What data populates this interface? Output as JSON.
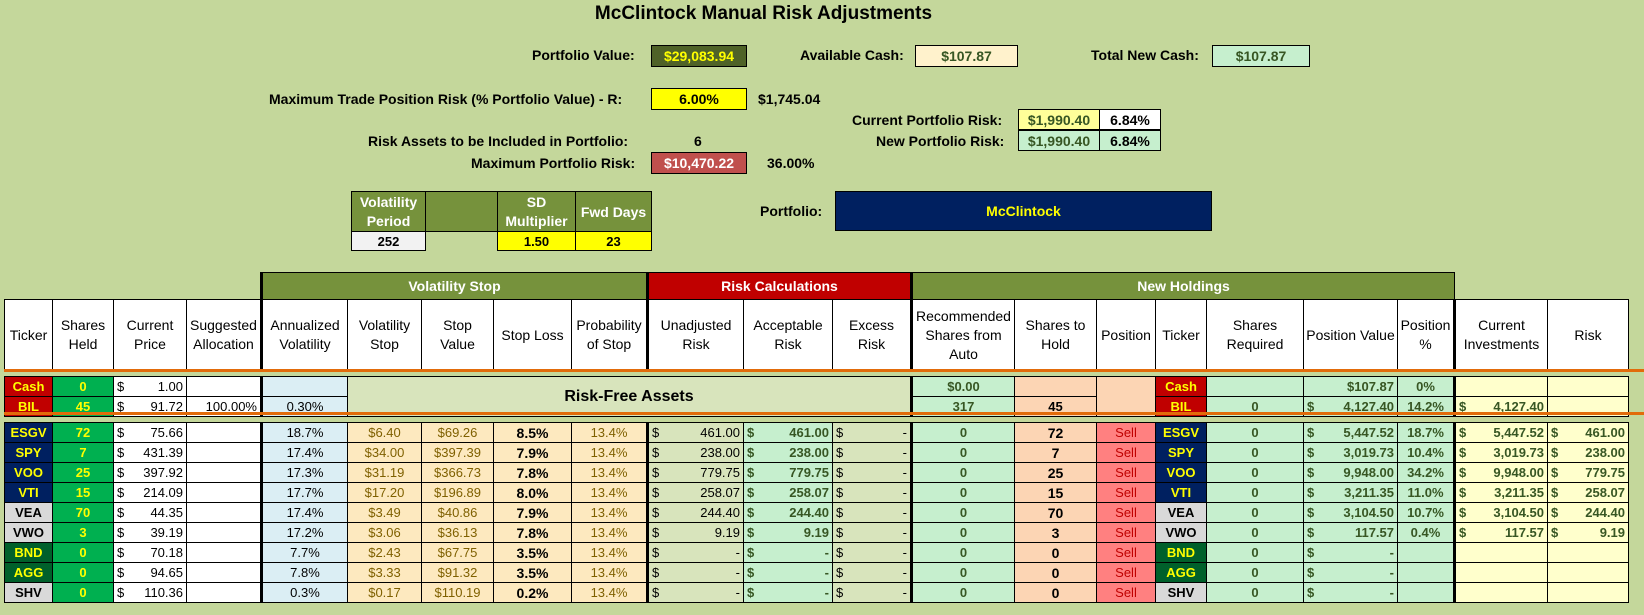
{
  "title": "McClintock Manual Risk Adjustments",
  "summary": {
    "portfolio_value_label": "Portfolio Value:",
    "portfolio_value": "$29,083.94",
    "available_cash_label": "Available Cash:",
    "available_cash": "$107.87",
    "total_new_cash_label": "Total New Cash:",
    "total_new_cash": "$107.87",
    "max_trade_risk_label": "Maximum Trade Position Risk (% Portfolio Value) - R:",
    "max_trade_risk_pct": "6.00%",
    "max_trade_risk_amt": "$1,745.04",
    "current_risk_label": "Current Portfolio Risk:",
    "current_risk_amt": "$1,990.40",
    "current_risk_pct": "6.84%",
    "new_risk_label": "New Portfolio Risk:",
    "new_risk_amt": "$1,990.40",
    "new_risk_pct": "6.84%",
    "risk_assets_label": "Risk Assets to be Included in Portfolio:",
    "risk_assets": "6",
    "max_portfolio_risk_label": "Maximum Portfolio Risk:",
    "max_portfolio_risk": "$10,470.22",
    "max_portfolio_risk_pct": "36.00%",
    "portfolio_label": "Portfolio:",
    "portfolio_name": "McClintock"
  },
  "volatility_params": {
    "h1": "Volatility Period",
    "h2": "",
    "h3": "SD Multiplier",
    "h4": "Fwd Days",
    "v1": "252",
    "v2": "",
    "v3": "1.50",
    "v4": "23"
  },
  "groups": {
    "vol_stop": "Volatility Stop",
    "risk_calc": "Risk Calculations",
    "new_holdings": "New Holdings"
  },
  "headers": [
    "Ticker",
    "Shares Held",
    "Current Price",
    "Suggested Allocation",
    "Annualized Volatility",
    "Volatility Stop",
    "Stop Value",
    "Stop Loss",
    "Probability of Stop",
    "Unadjusted Risk",
    "Acceptable Risk",
    "Excess Risk",
    "Recommended Shares from Auto",
    "Shares to Hold",
    "Position",
    "Ticker",
    "Shares Required",
    "Position Value",
    "Position %",
    "Current Investments",
    "Risk"
  ],
  "risk_free_label": "Risk-Free Assets",
  "cash_row": {
    "ticker": "Cash",
    "shares": "0",
    "price": "1.00",
    "rec": "$0.00",
    "ticker2": "Cash",
    "pos_value": "$107.87",
    "pos_pct": "0%"
  },
  "bil_row": {
    "ticker": "BIL",
    "shares": "45",
    "price": "91.72",
    "alloc": "100.00%",
    "vol": "0.30%",
    "rec": "317",
    "hold": "45",
    "ticker2": "BIL",
    "req": "0",
    "pos_value": "4,127.40",
    "pos_pct": "14.2%",
    "cur_inv": "4,127.40"
  },
  "rows": [
    {
      "ticker": "ESGV",
      "cls": "tk-navy",
      "shares": "72",
      "price": "75.66",
      "vol": "18.7%",
      "vstop": "$6.40",
      "stopval": "$69.26",
      "stoploss": "8.5%",
      "prob": "13.4%",
      "unadj": "461.00",
      "accept": "461.00",
      "excess": "-",
      "rec": "0",
      "hold": "72",
      "position": "Sell",
      "req": "0",
      "pval": "5,447.52",
      "ppct": "18.7%",
      "cur": "5,447.52",
      "risk": "461.00"
    },
    {
      "ticker": "SPY",
      "cls": "tk-navy",
      "shares": "7",
      "price": "431.39",
      "vol": "17.4%",
      "vstop": "$34.00",
      "stopval": "$397.39",
      "stoploss": "7.9%",
      "prob": "13.4%",
      "unadj": "238.00",
      "accept": "238.00",
      "excess": "-",
      "rec": "0",
      "hold": "7",
      "position": "Sell",
      "req": "0",
      "pval": "3,019.73",
      "ppct": "10.4%",
      "cur": "3,019.73",
      "risk": "238.00"
    },
    {
      "ticker": "VOO",
      "cls": "tk-navy",
      "shares": "25",
      "price": "397.92",
      "vol": "17.3%",
      "vstop": "$31.19",
      "stopval": "$366.73",
      "stoploss": "7.8%",
      "prob": "13.4%",
      "unadj": "779.75",
      "accept": "779.75",
      "excess": "-",
      "rec": "0",
      "hold": "25",
      "position": "Sell",
      "req": "0",
      "pval": "9,948.00",
      "ppct": "34.2%",
      "cur": "9,948.00",
      "risk": "779.75"
    },
    {
      "ticker": "VTI",
      "cls": "tk-navy",
      "shares": "15",
      "price": "214.09",
      "vol": "17.7%",
      "vstop": "$17.20",
      "stopval": "$196.89",
      "stoploss": "8.0%",
      "prob": "13.4%",
      "unadj": "258.07",
      "accept": "258.07",
      "excess": "-",
      "rec": "0",
      "hold": "15",
      "position": "Sell",
      "req": "0",
      "pval": "3,211.35",
      "ppct": "11.0%",
      "cur": "3,211.35",
      "risk": "258.07"
    },
    {
      "ticker": "VEA",
      "cls": "tk-grey",
      "shares": "70",
      "price": "44.35",
      "vol": "17.4%",
      "vstop": "$3.49",
      "stopval": "$40.86",
      "stoploss": "7.9%",
      "prob": "13.4%",
      "unadj": "244.40",
      "accept": "244.40",
      "excess": "-",
      "rec": "0",
      "hold": "70",
      "position": "Sell",
      "req": "0",
      "pval": "3,104.50",
      "ppct": "10.7%",
      "cur": "3,104.50",
      "risk": "244.40"
    },
    {
      "ticker": "VWO",
      "cls": "tk-grey",
      "shares": "3",
      "price": "39.19",
      "vol": "17.2%",
      "vstop": "$3.06",
      "stopval": "$36.13",
      "stoploss": "7.8%",
      "prob": "13.4%",
      "unadj": "9.19",
      "accept": "9.19",
      "excess": "-",
      "rec": "0",
      "hold": "3",
      "position": "Sell",
      "req": "0",
      "pval": "117.57",
      "ppct": "0.4%",
      "cur": "117.57",
      "risk": "9.19"
    },
    {
      "ticker": "BND",
      "cls": "tk-green",
      "shares": "0",
      "price": "70.18",
      "vol": "7.7%",
      "vstop": "$2.43",
      "stopval": "$67.75",
      "stoploss": "3.5%",
      "prob": "13.4%",
      "unadj": "-",
      "accept": "-",
      "excess": "-",
      "rec": "0",
      "hold": "0",
      "position": "Sell",
      "req": "0",
      "pval": "-",
      "ppct": "",
      "cur": "",
      "risk": ""
    },
    {
      "ticker": "AGG",
      "cls": "tk-green",
      "shares": "0",
      "price": "94.65",
      "vol": "7.8%",
      "vstop": "$3.33",
      "stopval": "$91.32",
      "stoploss": "3.5%",
      "prob": "13.4%",
      "unadj": "-",
      "accept": "-",
      "excess": "-",
      "rec": "0",
      "hold": "0",
      "position": "Sell",
      "req": "0",
      "pval": "-",
      "ppct": "",
      "cur": "",
      "risk": ""
    },
    {
      "ticker": "SHV",
      "cls": "tk-grey",
      "shares": "0",
      "price": "110.36",
      "vol": "0.3%",
      "vstop": "$0.17",
      "stopval": "$110.19",
      "stoploss": "0.2%",
      "prob": "13.4%",
      "unadj": "-",
      "accept": "-",
      "excess": "-",
      "rec": "0",
      "hold": "0",
      "position": "Sell",
      "req": "0",
      "pval": "-",
      "ppct": "",
      "cur": "",
      "risk": ""
    }
  ],
  "colors": {
    "background": "#c4d79b",
    "header_green": "#76923c",
    "risk_red": "#c00000",
    "portfolio_navy": "#002060"
  }
}
